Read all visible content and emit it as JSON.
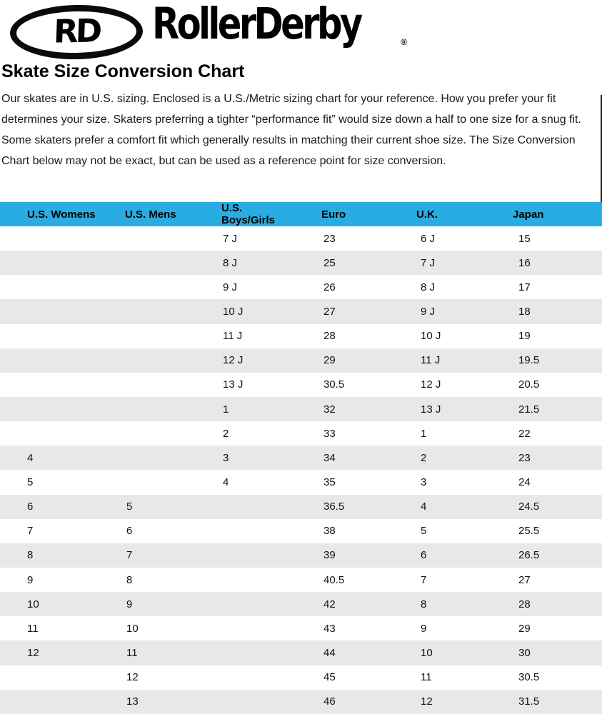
{
  "logo": {
    "badge_text": "RD",
    "brand_text": "RollerDerby",
    "registered_symbol": "®"
  },
  "heading": "Skate Size Conversion Chart",
  "intro": "Our skates are in U.S. sizing. Enclosed is a U.S./Metric sizing chart for your reference. How you prefer your fit determines your size. Skaters preferring a tighter “performance fit” would size down a half to one size for a snug fit. Some skaters prefer a comfort fit which generally results in matching their current shoe size. The Size Conversion Chart below may not be exact, but can be used as a reference point for size conversion.",
  "colors": {
    "header_bg": "#29ace2",
    "row_alt_bg": "#e8e8ea",
    "edge_artifact": "#471015"
  },
  "chart_data": {
    "type": "table",
    "title": "Skate Size Conversion Chart",
    "columns": [
      "U.S. Womens",
      "U.S. Mens",
      "U.S. Boys/Girls",
      "Euro",
      "U.K.",
      "Japan"
    ],
    "rows": [
      [
        "",
        "",
        "7 J",
        "23",
        "6 J",
        "15"
      ],
      [
        "",
        "",
        "8 J",
        "25",
        "7 J",
        "16"
      ],
      [
        "",
        "",
        "9 J",
        "26",
        "8 J",
        "17"
      ],
      [
        "",
        "",
        "10 J",
        "27",
        "9 J",
        "18"
      ],
      [
        "",
        "",
        "11 J",
        "28",
        "10 J",
        "19"
      ],
      [
        "",
        "",
        "12 J",
        "29",
        "11 J",
        "19.5"
      ],
      [
        "",
        "",
        "13 J",
        "30.5",
        "12 J",
        "20.5"
      ],
      [
        "",
        "",
        "1",
        "32",
        "13 J",
        "21.5"
      ],
      [
        "",
        "",
        "2",
        "33",
        "1",
        "22"
      ],
      [
        "4",
        "",
        "3",
        "34",
        "2",
        "23"
      ],
      [
        "5",
        "",
        "4",
        "35",
        "3",
        "24"
      ],
      [
        "6",
        "5",
        "",
        "36.5",
        "4",
        "24.5"
      ],
      [
        "7",
        "6",
        "",
        "38",
        "5",
        "25.5"
      ],
      [
        "8",
        "7",
        "",
        "39",
        "6",
        "26.5"
      ],
      [
        "9",
        "8",
        "",
        "40.5",
        "7",
        "27"
      ],
      [
        "10",
        "9",
        "",
        "42",
        "8",
        "28"
      ],
      [
        "11",
        "10",
        "",
        "43",
        "9",
        "29"
      ],
      [
        "12",
        "11",
        "",
        "44",
        "10",
        "30"
      ],
      [
        "",
        "12",
        "",
        "45",
        "11",
        "30.5"
      ],
      [
        "",
        "13",
        "",
        "46",
        "12",
        "31.5"
      ]
    ]
  }
}
